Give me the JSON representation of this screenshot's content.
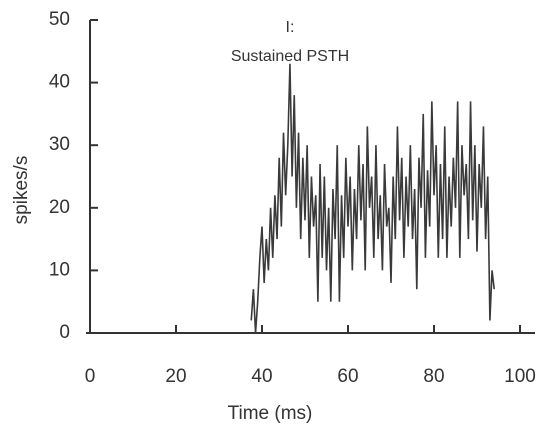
{
  "chart_data": {
    "type": "line",
    "title": "I:",
    "subtitle": "Sustained PSTH",
    "x_label": "Time (ms)",
    "y_label": "spikes/s",
    "xlim": [
      0,
      100
    ],
    "ylim": [
      0,
      50
    ],
    "xticks": [
      0,
      20,
      40,
      60,
      80,
      100
    ],
    "yticks": [
      0,
      10,
      20,
      30,
      40,
      50
    ],
    "series": [
      {
        "color": "#3a3a3a",
        "x": [
          37.5,
          38,
          38.5,
          39,
          39.5,
          40,
          40.5,
          41,
          41.5,
          42,
          42.5,
          43,
          43.5,
          44,
          44.5,
          45,
          45.5,
          46,
          46.5,
          47,
          47.5,
          48,
          48.5,
          49,
          49.5,
          50,
          50.5,
          51,
          51.5,
          52,
          52.5,
          53,
          53.5,
          54,
          54.5,
          55,
          55.5,
          56,
          56.5,
          57,
          57.5,
          58,
          58.5,
          59,
          59.5,
          60,
          60.5,
          61,
          61.5,
          62,
          62.5,
          63,
          63.5,
          64,
          64.5,
          65,
          65.5,
          66,
          66.5,
          67,
          67.5,
          68,
          68.5,
          69,
          69.5,
          70,
          70.5,
          71,
          71.5,
          72,
          72.5,
          73,
          73.5,
          74,
          74.5,
          75,
          75.5,
          76,
          76.5,
          77,
          77.5,
          78,
          78.5,
          79,
          79.5,
          80,
          80.5,
          81,
          81.5,
          82,
          82.5,
          83,
          83.5,
          84,
          84.5,
          85,
          85.5,
          86,
          86.5,
          87,
          87.5,
          88,
          88.5,
          89,
          89.5,
          90,
          90.5,
          91,
          91.5,
          92,
          92.5,
          93,
          93.5,
          94
        ],
        "values": [
          2,
          7,
          0,
          5,
          12,
          17,
          8,
          15,
          10,
          20,
          12,
          22,
          15,
          28,
          17,
          32,
          22,
          30,
          43,
          25,
          38,
          20,
          32,
          15,
          28,
          18,
          30,
          12,
          25,
          17,
          22,
          5,
          27,
          12,
          25,
          10,
          20,
          5,
          23,
          15,
          30,
          5,
          22,
          12,
          28,
          17,
          25,
          10,
          23,
          15,
          30,
          18,
          27,
          10,
          33,
          20,
          25,
          12,
          30,
          15,
          22,
          10,
          27,
          17,
          20,
          8,
          25,
          15,
          33,
          18,
          28,
          12,
          25,
          17,
          30,
          15,
          23,
          7,
          28,
          20,
          35,
          12,
          26,
          17,
          37,
          22,
          30,
          12,
          27,
          15,
          33,
          12,
          25,
          17,
          28,
          20,
          37,
          12,
          30,
          22,
          27,
          15,
          37,
          18,
          30,
          13,
          27,
          20,
          33,
          15,
          25,
          2,
          10,
          7
        ]
      }
    ]
  }
}
